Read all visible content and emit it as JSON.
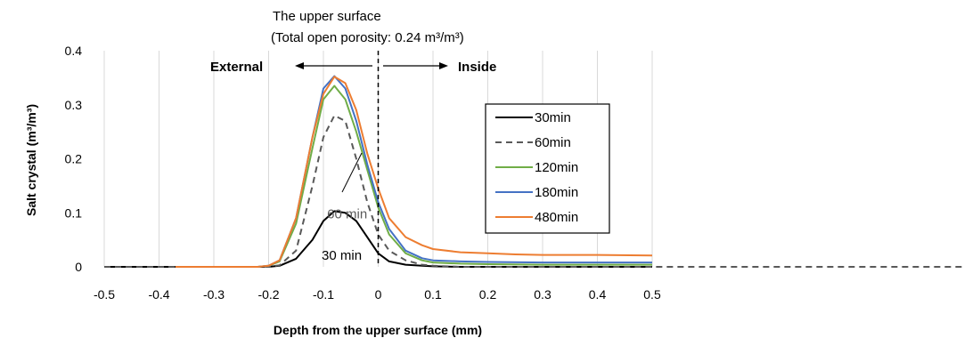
{
  "chart_data": {
    "type": "line",
    "header_line1": "The upper surface",
    "header_line2": "(Total open porosity: 0.24 m³/m³)",
    "xlabel": "Depth from the upper  surface (mm)",
    "ylabel": "Salt crystal (m³/m³)",
    "xlim": [
      -0.5,
      0.5
    ],
    "ylim": [
      0,
      0.4
    ],
    "xticks": [
      "-0.5",
      "-0.4",
      "-0.3",
      "-0.2",
      "-0.1",
      "0",
      "0.1",
      "0.2",
      "0.3",
      "0.4",
      "0.5"
    ],
    "yticks": [
      "0",
      "0.1",
      "0.2",
      "0.3",
      "0.4"
    ],
    "direction_left": "External",
    "direction_right": "Inside",
    "legend_position": "right",
    "annotations": [
      {
        "text": "60 min",
        "x": -0.02,
        "y": 0.09,
        "color": "#595959"
      },
      {
        "text": "30 min",
        "x": -0.03,
        "y": 0.013,
        "color": "#000000"
      }
    ],
    "series": [
      {
        "name": "30min",
        "color": "#000000",
        "dash": "solid",
        "x": [
          -0.5,
          -0.2,
          -0.18,
          -0.15,
          -0.12,
          -0.1,
          -0.08,
          -0.06,
          -0.04,
          -0.02,
          0,
          0.02,
          0.05,
          0.08,
          0.1,
          0.15,
          0.5
        ],
        "y": [
          0,
          0,
          0.002,
          0.015,
          0.05,
          0.085,
          0.103,
          0.1,
          0.085,
          0.055,
          0.025,
          0.01,
          0.004,
          0.002,
          0.001,
          0,
          0
        ]
      },
      {
        "name": "60min",
        "color": "#595959",
        "dash": "dashed",
        "x": [
          -0.5,
          -0.2,
          -0.18,
          -0.15,
          -0.12,
          -0.1,
          -0.08,
          -0.06,
          -0.04,
          -0.02,
          0,
          0.02,
          0.05,
          0.08,
          0.1,
          0.15,
          1.0
        ],
        "y": [
          0,
          0,
          0.003,
          0.03,
          0.15,
          0.24,
          0.28,
          0.27,
          0.2,
          0.12,
          0.06,
          0.03,
          0.012,
          0.004,
          0.002,
          0,
          0
        ]
      },
      {
        "name": "120min",
        "color": "#70ad47",
        "dash": "solid",
        "x": [
          -0.37,
          -0.22,
          -0.2,
          -0.18,
          -0.15,
          -0.12,
          -0.1,
          -0.08,
          -0.06,
          -0.04,
          -0.02,
          0,
          0.02,
          0.05,
          0.08,
          0.1,
          0.15,
          0.2,
          0.3,
          0.5
        ],
        "y": [
          0,
          0,
          0.002,
          0.01,
          0.08,
          0.22,
          0.31,
          0.335,
          0.31,
          0.25,
          0.18,
          0.11,
          0.06,
          0.025,
          0.012,
          0.008,
          0.006,
          0.005,
          0.004,
          0.004
        ]
      },
      {
        "name": "180min",
        "color": "#4472c4",
        "dash": "solid",
        "x": [
          -0.37,
          -0.22,
          -0.2,
          -0.18,
          -0.15,
          -0.12,
          -0.1,
          -0.08,
          -0.06,
          -0.04,
          -0.02,
          0,
          0.02,
          0.05,
          0.08,
          0.1,
          0.15,
          0.2,
          0.3,
          0.5
        ],
        "y": [
          0,
          0,
          0.002,
          0.012,
          0.09,
          0.24,
          0.33,
          0.353,
          0.33,
          0.27,
          0.19,
          0.12,
          0.07,
          0.03,
          0.016,
          0.012,
          0.01,
          0.009,
          0.008,
          0.008
        ]
      },
      {
        "name": "480min",
        "color": "#ed7d31",
        "dash": "solid",
        "x": [
          -0.37,
          -0.22,
          -0.2,
          -0.18,
          -0.15,
          -0.12,
          -0.1,
          -0.08,
          -0.06,
          -0.04,
          -0.02,
          0,
          0.02,
          0.05,
          0.08,
          0.1,
          0.15,
          0.2,
          0.25,
          0.3,
          0.4,
          0.5
        ],
        "y": [
          0,
          0,
          0.002,
          0.012,
          0.09,
          0.24,
          0.32,
          0.352,
          0.34,
          0.29,
          0.21,
          0.145,
          0.09,
          0.055,
          0.04,
          0.033,
          0.027,
          0.025,
          0.023,
          0.022,
          0.022,
          0.021
        ]
      }
    ]
  }
}
